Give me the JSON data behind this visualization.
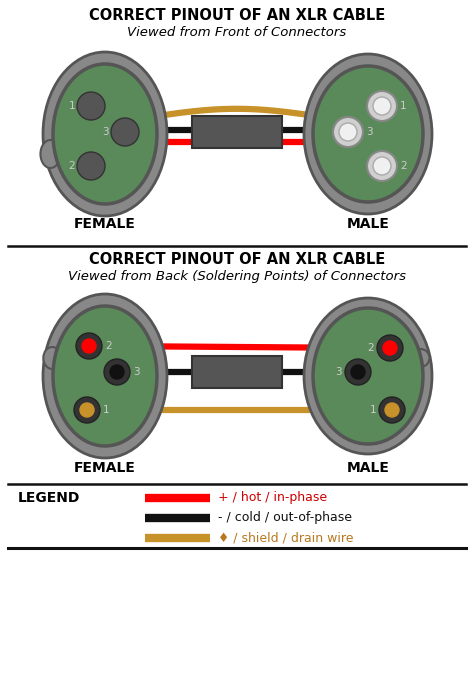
{
  "title": "CORRECT PINOUT OF AN XLR CABLE",
  "subtitle_front": "Viewed from Front of Connectors",
  "subtitle_back": "Viewed from Back (Soldering Points) of Connectors",
  "female_label": "FEMALE",
  "male_label": "MALE",
  "legend_title": "LEGEND",
  "legend_items": [
    {
      "color": "#ff0000",
      "label": "+ / hot / in-phase",
      "text_color": "#cc0000"
    },
    {
      "color": "#111111",
      "label": "- / cold / out-of-phase",
      "text_color": "#111111"
    },
    {
      "color": "#c8922a",
      "label": "♦ / shield / drain wire",
      "text_color": "#b87820"
    }
  ],
  "bg_color": "#ffffff",
  "outer_shell_color": "#888888",
  "outer_shell_dark": "#555555",
  "inner_green": "#5a8a5a",
  "pin_dark": "#555555",
  "pin_light": "#d0d0d0",
  "pin_white": "#f0f0f0",
  "solder_ring": "#333333",
  "cable_box_color": "#555555",
  "wire_red": "#ff0000",
  "wire_black": "#111111",
  "wire_gold": "#c8922a",
  "divider_color": "#111111",
  "title_fontsize": 10.5,
  "subtitle_fontsize": 9.5,
  "label_fontsize": 10,
  "legend_fontsize": 9,
  "pin_label_fontsize": 7.5
}
